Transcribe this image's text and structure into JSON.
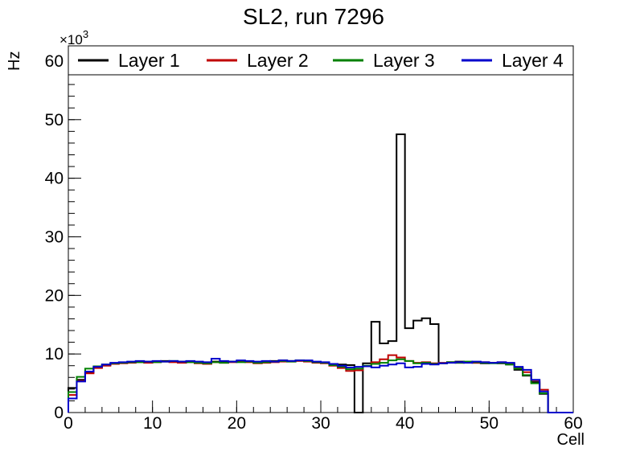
{
  "title": "SL2, run 7296",
  "axes": {
    "x_label": "Cell",
    "y_label": "Hz",
    "y_multiplier_base": "×10",
    "y_multiplier_exp": "3"
  },
  "chart_data": {
    "type": "histogram-step",
    "title": "SL2, run 7296",
    "xlabel": "Cell",
    "ylabel": "Hz",
    "values_unit": "1e3 Hz",
    "xlim": [
      0,
      60
    ],
    "ylim": [
      0,
      62.6
    ],
    "bin_width": 1,
    "x_bin_start": 0,
    "x_major_ticks": [
      0,
      10,
      20,
      30,
      40,
      50,
      60
    ],
    "x_minor_step": 2,
    "y_major_ticks": [
      0,
      10,
      20,
      30,
      40,
      50,
      60
    ],
    "y_minor_step": 2,
    "grid": false,
    "legend_position": "top-horizontal",
    "frame_color": "#000000",
    "background_color": "#ffffff",
    "series": [
      {
        "name": "Layer 1",
        "color": "#000000",
        "values": [
          4.2,
          5.6,
          6.9,
          7.7,
          8.1,
          8.4,
          8.5,
          8.6,
          8.7,
          8.6,
          8.7,
          8.8,
          8.7,
          8.6,
          8.7,
          8.6,
          8.5,
          8.7,
          8.6,
          8.7,
          8.8,
          8.7,
          8.6,
          8.7,
          8.8,
          8.9,
          8.8,
          8.9,
          8.8,
          8.6,
          8.5,
          8.3,
          8.2,
          8.1,
          0.0,
          8.4,
          15.5,
          11.8,
          12.2,
          47.5,
          14.4,
          15.7,
          16.1,
          15.1,
          8.4,
          8.6,
          8.7,
          8.6,
          8.5,
          8.4,
          8.5,
          8.4,
          8.2,
          7.3,
          6.3,
          5.2,
          3.2,
          0.0,
          0.0,
          0.0
        ]
      },
      {
        "name": "Layer 2",
        "color": "#c00000",
        "values": [
          3.0,
          5.4,
          6.7,
          7.6,
          8.0,
          8.3,
          8.4,
          8.5,
          8.6,
          8.5,
          8.6,
          8.7,
          8.6,
          8.5,
          8.6,
          8.4,
          8.3,
          8.6,
          8.5,
          8.6,
          8.7,
          8.6,
          8.4,
          8.5,
          8.6,
          8.7,
          8.7,
          8.8,
          8.7,
          8.5,
          8.4,
          8.0,
          7.6,
          7.1,
          7.2,
          7.9,
          8.6,
          9.1,
          9.8,
          9.4,
          8.8,
          8.5,
          8.6,
          8.4,
          8.5,
          8.6,
          8.5,
          8.6,
          8.5,
          8.6,
          8.5,
          8.6,
          8.4,
          7.6,
          6.9,
          5.5,
          3.9,
          0.0,
          0.0,
          0.0
        ]
      },
      {
        "name": "Layer 3",
        "color": "#008000",
        "values": [
          3.5,
          6.1,
          7.5,
          7.9,
          8.2,
          8.4,
          8.5,
          8.6,
          8.6,
          8.7,
          8.6,
          8.7,
          8.8,
          8.7,
          8.6,
          8.5,
          8.4,
          8.6,
          8.5,
          8.7,
          8.6,
          8.7,
          8.5,
          8.6,
          8.7,
          8.8,
          8.7,
          8.9,
          8.8,
          8.6,
          8.5,
          8.1,
          7.8,
          7.4,
          7.5,
          8.0,
          8.3,
          8.5,
          8.9,
          9.1,
          8.8,
          8.4,
          8.5,
          8.3,
          8.4,
          8.6,
          8.5,
          8.7,
          8.6,
          8.5,
          8.4,
          8.5,
          8.2,
          7.5,
          6.4,
          5.0,
          3.3,
          0.0,
          0.0,
          0.0
        ]
      },
      {
        "name": "Layer 4",
        "color": "#0000cc",
        "values": [
          2.4,
          5.3,
          7.0,
          7.8,
          8.2,
          8.5,
          8.6,
          8.7,
          8.8,
          8.7,
          8.8,
          8.7,
          8.8,
          8.7,
          8.8,
          8.7,
          8.6,
          9.2,
          8.8,
          8.7,
          8.9,
          8.8,
          8.7,
          8.8,
          8.7,
          8.9,
          8.8,
          8.9,
          8.9,
          8.7,
          8.6,
          8.3,
          8.0,
          7.7,
          7.8,
          7.9,
          7.7,
          8.0,
          8.2,
          8.4,
          7.7,
          7.8,
          8.3,
          8.2,
          8.4,
          8.5,
          8.6,
          8.5,
          8.7,
          8.6,
          8.5,
          8.6,
          8.5,
          7.8,
          7.3,
          5.6,
          3.6,
          0.0,
          0.0,
          0.0
        ]
      }
    ]
  }
}
